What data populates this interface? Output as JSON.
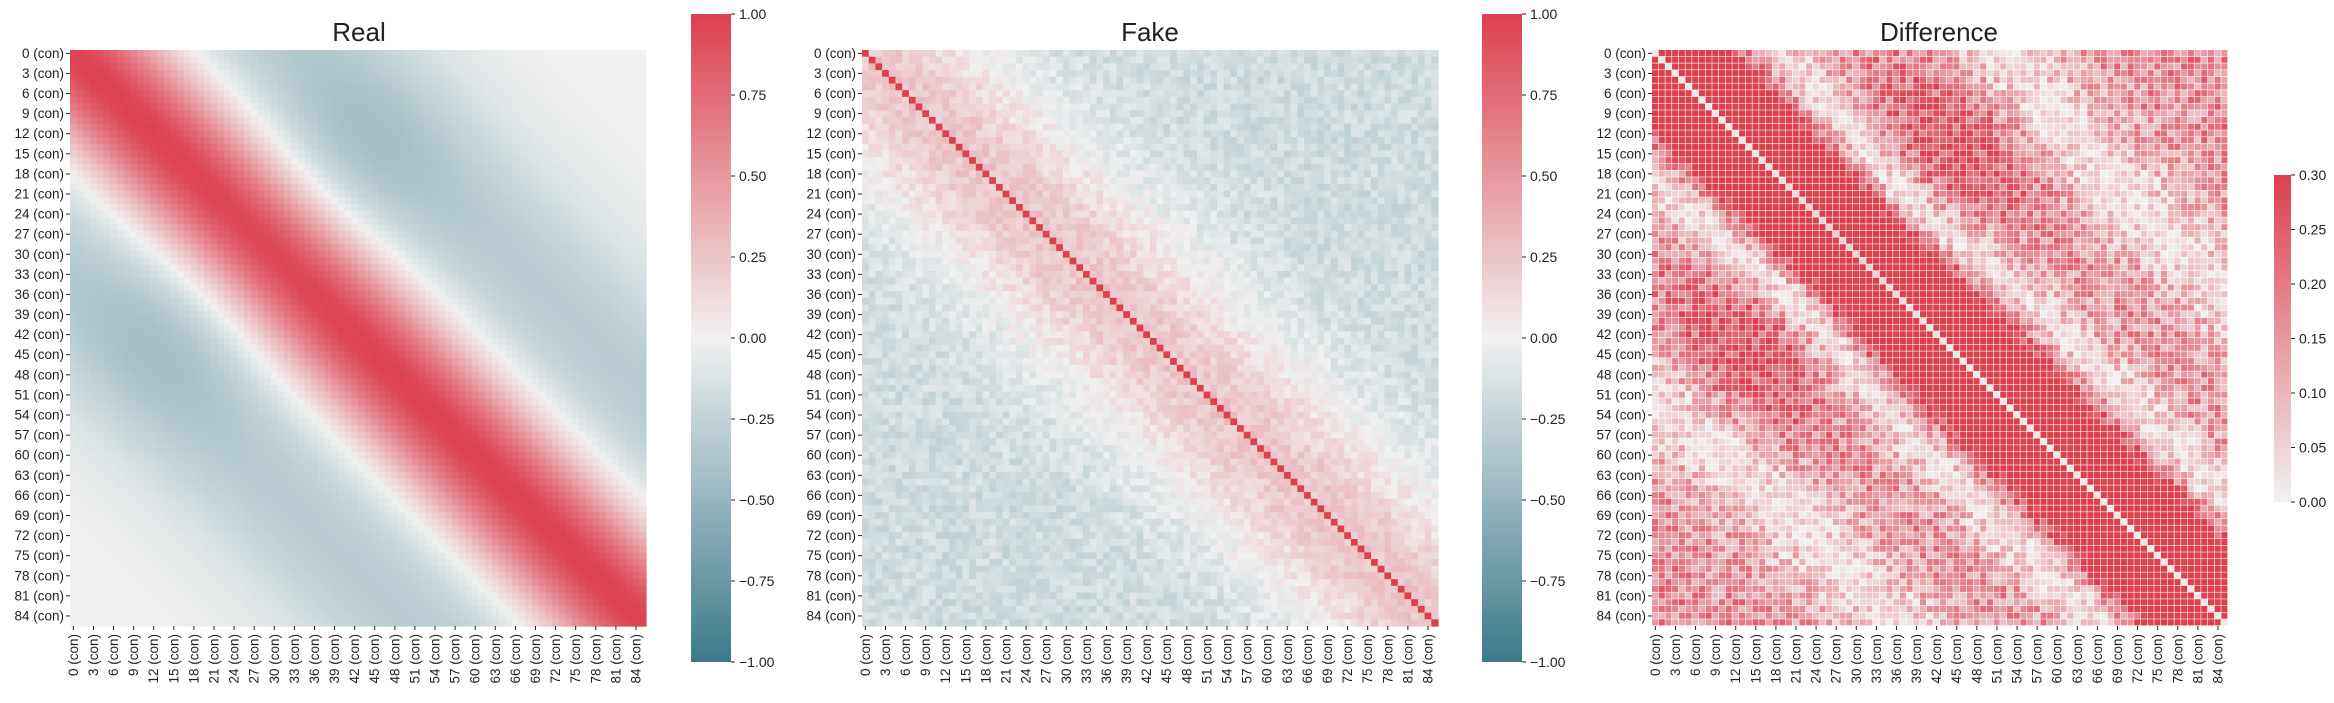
{
  "figure": {
    "colormap": {
      "negative": "#3b7a8a",
      "neutral": "#f1f1f1",
      "positive": "#dd3f4d"
    }
  },
  "chart_data": [
    {
      "type": "heatmap",
      "title": "Real",
      "matrix_size": 86,
      "row_labels": [
        "0 (con)",
        "3 (con)",
        "6 (con)",
        "9 (con)",
        "12 (con)",
        "15 (con)",
        "18 (con)",
        "21 (con)",
        "24 (con)",
        "27 (con)",
        "30 (con)",
        "33 (con)",
        "36 (con)",
        "39 (con)",
        "42 (con)",
        "45 (con)",
        "48 (con)",
        "51 (con)",
        "54 (con)",
        "57 (con)",
        "60 (con)",
        "63 (con)",
        "66 (con)",
        "69 (con)",
        "72 (con)",
        "75 (con)",
        "78 (con)",
        "81 (con)",
        "84 (con)"
      ],
      "col_labels": [
        "0 (con)",
        "3 (con)",
        "6 (con)",
        "9 (con)",
        "12 (con)",
        "15 (con)",
        "18 (con)",
        "21 (con)",
        "24 (con)",
        "27 (con)",
        "30 (con)",
        "33 (con)",
        "36 (con)",
        "39 (con)",
        "42 (con)",
        "45 (con)",
        "48 (con)",
        "51 (con)",
        "54 (con)",
        "57 (con)",
        "60 (con)",
        "63 (con)",
        "66 (con)",
        "69 (con)",
        "72 (con)",
        "75 (con)",
        "78 (con)",
        "81 (con)",
        "84 (con)"
      ],
      "label_step": 3,
      "vmin": -1.0,
      "vmax": 1.0,
      "colorbar_ticks": [
        "1.00",
        "0.75",
        "0.50",
        "0.25",
        "0.00",
        "−0.25",
        "−0.50",
        "−0.75",
        "−1.00"
      ],
      "pattern": "smooth band: correlation ≈ 1.0 on the diagonal, decaying to ≈ 0 at |i−j| ≈ 20, slightly negative (≈ −0.35) further away"
    },
    {
      "type": "heatmap",
      "title": "Fake",
      "matrix_size": 86,
      "row_labels": [
        "0 (con)",
        "3 (con)",
        "6 (con)",
        "9 (con)",
        "12 (con)",
        "15 (con)",
        "18 (con)",
        "21 (con)",
        "24 (con)",
        "27 (con)",
        "30 (con)",
        "33 (con)",
        "36 (con)",
        "39 (con)",
        "42 (con)",
        "45 (con)",
        "48 (con)",
        "51 (con)",
        "54 (con)",
        "57 (con)",
        "60 (con)",
        "63 (con)",
        "66 (con)",
        "69 (con)",
        "72 (con)",
        "75 (con)",
        "78 (con)",
        "81 (con)",
        "84 (con)"
      ],
      "col_labels": [
        "0 (con)",
        "3 (con)",
        "6 (con)",
        "9 (con)",
        "12 (con)",
        "15 (con)",
        "18 (con)",
        "21 (con)",
        "24 (con)",
        "27 (con)",
        "30 (con)",
        "33 (con)",
        "36 (con)",
        "39 (con)",
        "42 (con)",
        "45 (con)",
        "48 (con)",
        "51 (con)",
        "54 (con)",
        "57 (con)",
        "60 (con)",
        "63 (con)",
        "66 (con)",
        "69 (con)",
        "72 (con)",
        "75 (con)",
        "78 (con)",
        "81 (con)",
        "84 (con)"
      ],
      "label_step": 3,
      "vmin": -1.0,
      "vmax": 1.0,
      "colorbar_ticks": [
        "1.00",
        "0.75",
        "0.50",
        "0.25",
        "0.00",
        "−0.25",
        "−0.50",
        "−0.75",
        "−1.00"
      ],
      "pattern": "diagonal = 1.0; noisy pink band ≈ 0.3–0.5 near the diagonal, light blue (≈ −0.2) off-diagonal"
    },
    {
      "type": "heatmap",
      "title": "Difference",
      "matrix_size": 86,
      "row_labels": [
        "0 (con)",
        "3 (con)",
        "6 (con)",
        "9 (con)",
        "12 (con)",
        "15 (con)",
        "18 (con)",
        "21 (con)",
        "24 (con)",
        "27 (con)",
        "30 (con)",
        "33 (con)",
        "36 (con)",
        "39 (con)",
        "42 (con)",
        "45 (con)",
        "48 (con)",
        "51 (con)",
        "54 (con)",
        "57 (con)",
        "60 (con)",
        "63 (con)",
        "66 (con)",
        "69 (con)",
        "72 (con)",
        "75 (con)",
        "78 (con)",
        "81 (con)",
        "84 (con)"
      ],
      "col_labels": [
        "0 (con)",
        "3 (con)",
        "6 (con)",
        "9 (con)",
        "12 (con)",
        "15 (con)",
        "18 (con)",
        "21 (con)",
        "24 (con)",
        "27 (con)",
        "30 (con)",
        "33 (con)",
        "36 (con)",
        "39 (con)",
        "42 (con)",
        "45 (con)",
        "48 (con)",
        "51 (con)",
        "54 (con)",
        "57 (con)",
        "60 (con)",
        "63 (con)",
        "66 (con)",
        "69 (con)",
        "72 (con)",
        "75 (con)",
        "78 (con)",
        "81 (con)",
        "84 (con)"
      ],
      "label_step": 3,
      "vmin": 0.0,
      "vmax": 0.3,
      "colorbar_ticks": [
        "0.30",
        "0.25",
        "0.20",
        "0.15",
        "0.10",
        "0.05",
        "0.00"
      ],
      "pattern": "absolute difference; diagonal = 0, strong (≈ 0.3) band at |i−j| ≈ 5–15, moderate elsewhere"
    }
  ]
}
